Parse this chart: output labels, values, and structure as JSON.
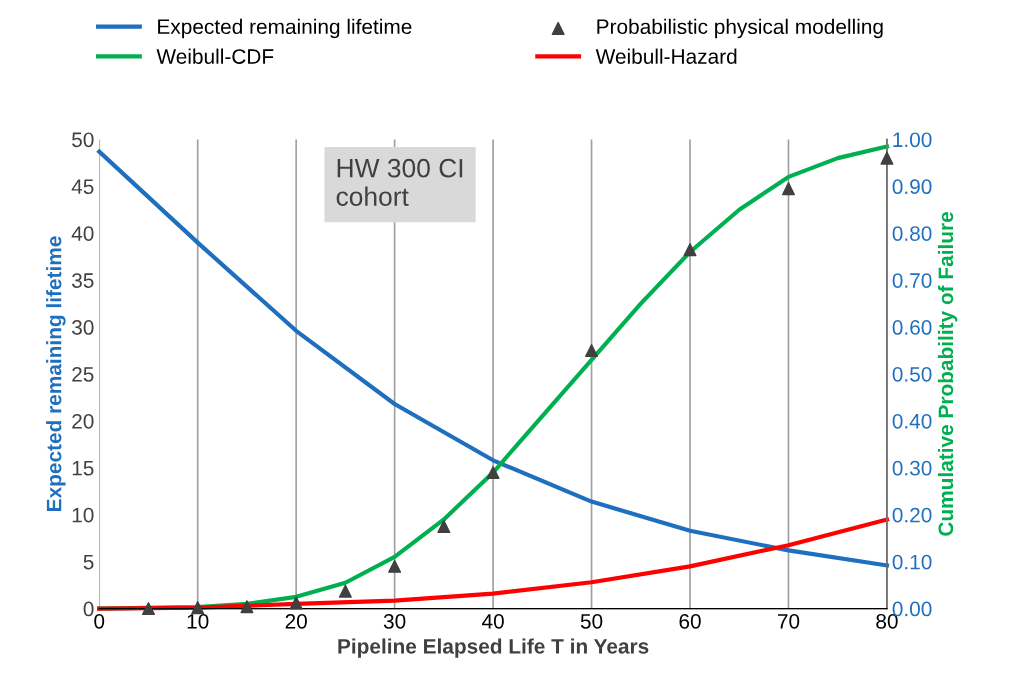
{
  "chart_data": {
    "type": "line",
    "xlabel": "Pipeline Elapsed Life T in Years",
    "ylabel": "Expected remaining lifetime",
    "y2label": "Cumulative Probability of Failure",
    "xlim": [
      0,
      80
    ],
    "xticks": [
      0,
      10,
      20,
      30,
      40,
      50,
      60,
      70,
      80
    ],
    "ylim": [
      0,
      50
    ],
    "yticks": [
      0,
      5,
      10,
      15,
      20,
      25,
      30,
      35,
      40,
      45,
      50
    ],
    "y2lim": [
      0,
      1
    ],
    "y2ticks": [
      {
        "value": 0,
        "label": "0.00"
      },
      {
        "value": 0.1,
        "label": "0.10"
      },
      {
        "value": 0.2,
        "label": "0.20"
      },
      {
        "value": 0.3,
        "label": "0.30"
      },
      {
        "value": 0.4,
        "label": "0.40"
      },
      {
        "value": 0.5,
        "label": "0.50"
      },
      {
        "value": 0.6,
        "label": "0.60"
      },
      {
        "value": 0.7,
        "label": "0.70"
      },
      {
        "value": 0.8,
        "label": "0.80"
      },
      {
        "value": 0.9,
        "label": "0.90"
      },
      {
        "value": 1,
        "label": "1.00"
      }
    ],
    "grid": "x",
    "legend": "top",
    "marker": "none",
    "line_style": "solid",
    "annotations": [
      "HW 300 CI\ncohort"
    ],
    "series": [
      {
        "name": "Expected remaining lifetime",
        "color": "#1f6fbf",
        "x": [
          0,
          10,
          20,
          30,
          40,
          50,
          60,
          70,
          80
        ],
        "values": [
          48.7,
          39,
          29.6,
          21.8,
          15.8,
          11.4,
          8.3,
          6.2,
          4.6
        ]
      },
      {
        "name": "Weibull-CDF",
        "color": "#00b050",
        "axis": "y2",
        "x": [
          0,
          10,
          15,
          20,
          25,
          30,
          35,
          40,
          45,
          50,
          55,
          60,
          65,
          70,
          75,
          80
        ],
        "values": [
          0,
          0.003,
          0.01,
          0.025,
          0.055,
          0.11,
          0.19,
          0.29,
          0.41,
          0.53,
          0.65,
          0.76,
          0.85,
          0.92,
          0.96,
          0.985
        ]
      },
      {
        "name": "Probabilistic physical modelling",
        "type": "scatter",
        "marker": "triangle",
        "color": "#404040",
        "axis": "y2",
        "x": [
          5,
          10,
          15,
          20,
          25,
          30,
          35,
          40,
          50,
          60,
          70,
          80
        ],
        "values": [
          0,
          0.002,
          0.004,
          0.012,
          0.037,
          0.09,
          0.175,
          0.29,
          0.55,
          0.765,
          0.895,
          0.96
        ]
      },
      {
        "name": "Weibull-Hazard",
        "color": "#ff0000",
        "axis": "y2",
        "x": [
          0,
          10,
          20,
          30,
          40,
          50,
          60,
          70,
          80
        ],
        "values": [
          0,
          0.002,
          0.01,
          0.017,
          0.032,
          0.056,
          0.09,
          0.135,
          0.19
        ]
      }
    ]
  }
}
